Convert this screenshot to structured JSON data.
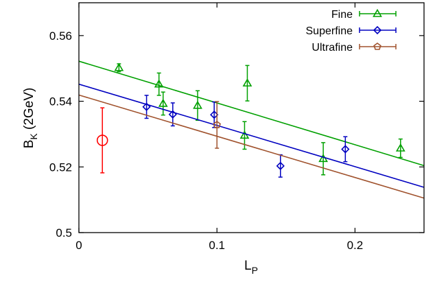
{
  "chart_data": {
    "type": "scatter",
    "xlabel": {
      "main": "L",
      "sub": "P"
    },
    "ylabel": {
      "main": "B",
      "sub": "K",
      "suffix": " (2GeV)"
    },
    "xlim": [
      0,
      0.25
    ],
    "ylim": [
      0.5,
      0.57
    ],
    "x_ticks": [
      0,
      0.1,
      0.2
    ],
    "x_tick_labels": [
      "0",
      "0.1",
      "0.2"
    ],
    "y_ticks": [
      0.5,
      0.52,
      0.54,
      0.56
    ],
    "y_tick_labels": [
      "0.5",
      "0.52",
      "0.54",
      "0.56"
    ],
    "grid": false,
    "legend_position": "top-right",
    "series": [
      {
        "name": "Fine",
        "color": "#00a000",
        "marker": "triangle",
        "points": [
          {
            "x": 0.029,
            "y": 0.5502,
            "err": 0.0012
          },
          {
            "x": 0.058,
            "y": 0.5452,
            "err": 0.0034
          },
          {
            "x": 0.061,
            "y": 0.5393,
            "err": 0.0035
          },
          {
            "x": 0.086,
            "y": 0.5387,
            "err": 0.0045
          },
          {
            "x": 0.12,
            "y": 0.5296,
            "err": 0.0042
          },
          {
            "x": 0.122,
            "y": 0.5455,
            "err": 0.0054
          },
          {
            "x": 0.177,
            "y": 0.5225,
            "err": 0.0049
          },
          {
            "x": 0.233,
            "y": 0.5257,
            "err": 0.0028
          }
        ],
        "fit": {
          "x0": 0,
          "y0": 0.5522,
          "x1": 0.25,
          "y1": 0.5204
        }
      },
      {
        "name": "Superfine",
        "color": "#0000c0",
        "marker": "diamond",
        "points": [
          {
            "x": 0.049,
            "y": 0.5383,
            "err": 0.0035
          },
          {
            "x": 0.068,
            "y": 0.536,
            "err": 0.0035
          },
          {
            "x": 0.098,
            "y": 0.5359,
            "err": 0.0039
          },
          {
            "x": 0.146,
            "y": 0.5203,
            "err": 0.0034
          },
          {
            "x": 0.193,
            "y": 0.5254,
            "err": 0.0038
          }
        ],
        "fit": {
          "x0": 0,
          "y0": 0.5452,
          "x1": 0.25,
          "y1": 0.5138
        }
      },
      {
        "name": "Ultrafine",
        "color": "#a0522d",
        "marker": "pentagon",
        "points": [
          {
            "x": 0.1,
            "y": 0.5328,
            "err": 0.0071
          }
        ],
        "fit": {
          "x0": 0,
          "y0": 0.5419,
          "x1": 0.25,
          "y1": 0.5105
        }
      }
    ],
    "extra_points": [
      {
        "x": 0.017,
        "y": 0.5281,
        "err": 0.0099,
        "color": "#ff0000",
        "marker": "circle"
      }
    ]
  }
}
